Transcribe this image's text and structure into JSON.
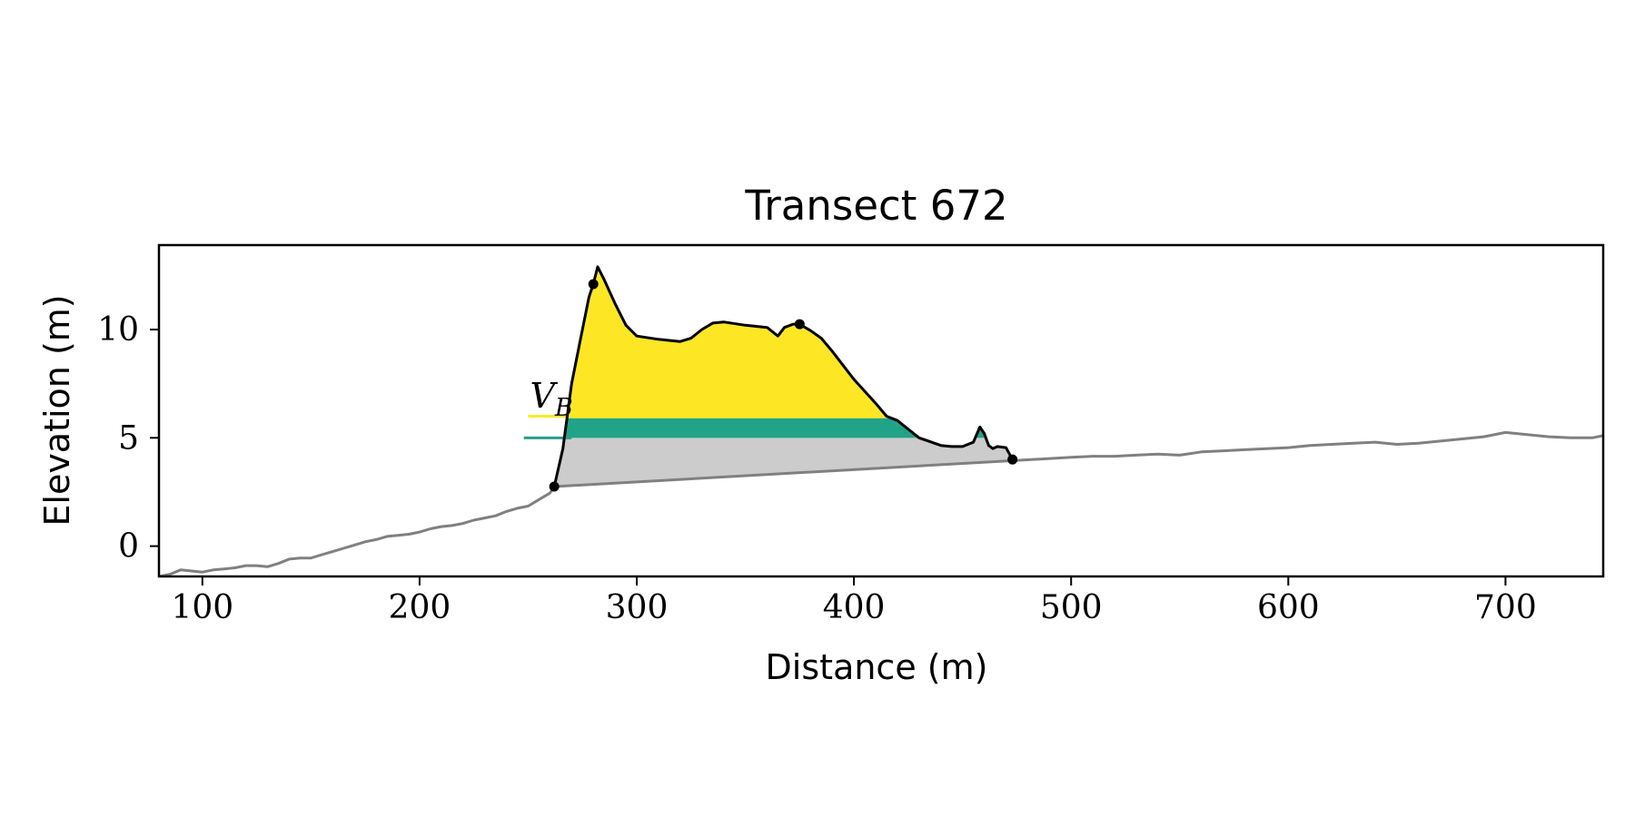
{
  "chart_data": {
    "type": "area",
    "title": "Transect 672",
    "xlabel": "Distance (m)",
    "ylabel": "Elevation (m)",
    "xlim": [
      80,
      745
    ],
    "ylim": [
      -1.4,
      13.9
    ],
    "x_ticks": [
      100,
      200,
      300,
      400,
      500,
      600,
      700
    ],
    "x_tick_labels": [
      "100",
      "200",
      "300",
      "400",
      "500",
      "600",
      "700"
    ],
    "y_ticks": [
      0,
      5,
      10
    ],
    "y_tick_labels": [
      "0",
      "5",
      "10"
    ],
    "grid": false,
    "annotations": [
      {
        "text": "V",
        "subscript": "B",
        "x": 250,
        "y": 6.4,
        "color": "#fde725"
      }
    ],
    "colors": {
      "profile": "#808080",
      "dune_outline": "#000000",
      "dune_fill": "#fde725",
      "band_fill": "#21a387",
      "band_line": "#2a9d8f",
      "base_fill": "#cccccc",
      "points": "#000000"
    },
    "reference_lines": [
      {
        "name": "teal",
        "y": 5.0,
        "x_start": 248
      },
      {
        "name": "yellow",
        "y": 6.0,
        "x_start": 250,
        "x_end": 268
      }
    ],
    "band": {
      "y_low": 5.0,
      "y_high": 5.9
    },
    "profile": {
      "x": [
        80,
        85,
        90,
        95,
        100,
        105,
        110,
        115,
        120,
        125,
        130,
        135,
        140,
        145,
        150,
        155,
        160,
        165,
        170,
        175,
        180,
        185,
        190,
        195,
        200,
        205,
        210,
        215,
        220,
        225,
        230,
        235,
        240,
        245,
        250,
        255,
        260,
        262,
        500,
        510,
        520,
        530,
        540,
        550,
        560,
        570,
        580,
        590,
        600,
        610,
        620,
        630,
        640,
        650,
        660,
        670,
        680,
        690,
        700,
        710,
        720,
        730,
        740,
        745
      ],
      "y": [
        -1.4,
        -1.3,
        -1.1,
        -1.15,
        -1.2,
        -1.1,
        -1.05,
        -1.0,
        -0.9,
        -0.9,
        -0.95,
        -0.8,
        -0.6,
        -0.55,
        -0.55,
        -0.4,
        -0.25,
        -0.1,
        0.05,
        0.2,
        0.3,
        0.45,
        0.5,
        0.55,
        0.65,
        0.8,
        0.9,
        0.95,
        1.05,
        1.2,
        1.3,
        1.4,
        1.6,
        1.75,
        1.85,
        2.15,
        2.45,
        2.75,
        4.1,
        4.15,
        4.15,
        4.2,
        4.25,
        4.2,
        4.35,
        4.4,
        4.45,
        4.5,
        4.55,
        4.65,
        4.7,
        4.75,
        4.8,
        4.7,
        4.75,
        4.85,
        4.95,
        5.05,
        5.25,
        5.15,
        5.05,
        5.0,
        5.0,
        5.1
      ]
    },
    "dune": {
      "x": [
        262,
        266,
        270,
        274,
        278,
        280,
        282,
        285,
        290,
        295,
        300,
        310,
        320,
        325,
        330,
        335,
        340,
        350,
        360,
        365,
        368,
        372,
        375,
        380,
        385,
        390,
        400,
        410,
        415,
        420,
        430,
        440,
        445,
        450,
        455,
        458,
        460,
        462,
        464,
        466,
        470,
        473
      ],
      "y": [
        2.75,
        4.5,
        7.5,
        9.5,
        11.5,
        12.1,
        12.9,
        12.3,
        11.2,
        10.2,
        9.7,
        9.55,
        9.45,
        9.6,
        10.0,
        10.3,
        10.35,
        10.2,
        10.1,
        9.7,
        10.1,
        10.25,
        10.25,
        9.95,
        9.6,
        9.0,
        7.7,
        6.6,
        6.0,
        5.8,
        5.0,
        4.65,
        4.6,
        4.6,
        4.8,
        5.5,
        5.2,
        4.65,
        4.5,
        4.6,
        4.55,
        4.0
      ]
    },
    "base_line": {
      "x": [
        262,
        473
      ],
      "y": [
        2.75,
        4.0
      ]
    },
    "key_points": {
      "x": [
        262,
        280,
        375,
        473
      ],
      "y": [
        2.75,
        12.1,
        10.25,
        4.0
      ]
    }
  }
}
